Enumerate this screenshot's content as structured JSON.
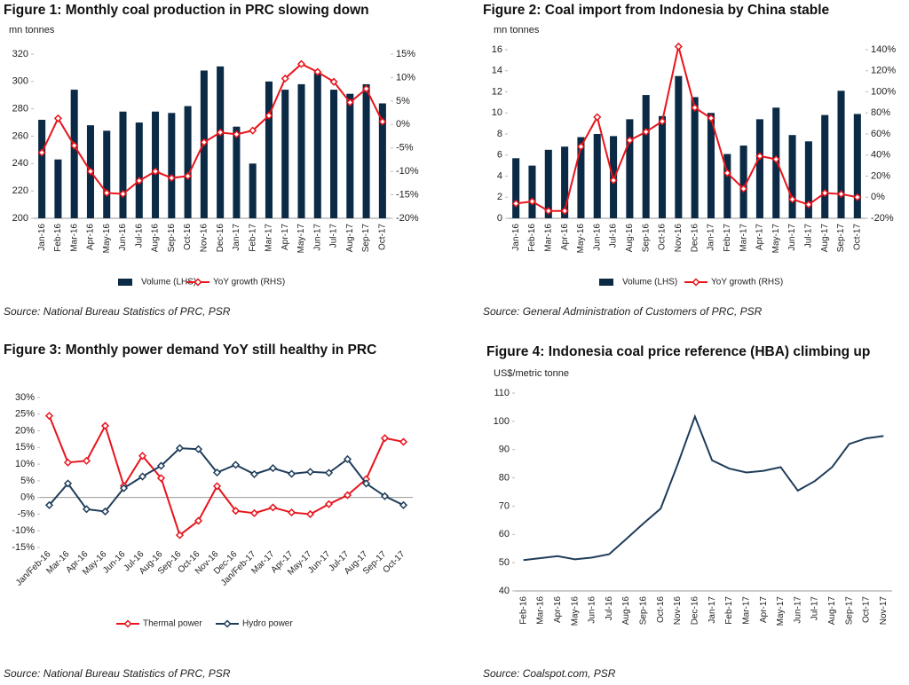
{
  "chart_data": [
    {
      "type": "bar",
      "title": "Figure 1: Monthly coal production in PRC slowing down",
      "y_label": "mn tonnes",
      "source": "Source:  National Bureau Statistics of PRC, PSR",
      "legend": "bottom",
      "markers": true,
      "categories": [
        "Jan-16",
        "Feb-16",
        "Mar-16",
        "Apr-16",
        "May-16",
        "Jun-16",
        "Jul-16",
        "Aug-16",
        "Sep-16",
        "Oct-16",
        "Nov-16",
        "Dec-16",
        "Jan-17",
        "Feb-17",
        "Mar-17",
        "Apr-17",
        "May-17",
        "Jun-17",
        "Jul-17",
        "Aug-17",
        "Sep-17",
        "Oct-17"
      ],
      "series": [
        {
          "name": "Volume (LHS)",
          "type": "bar",
          "color": "#0b2a45",
          "values": [
            272,
            243,
            294,
            268,
            264,
            278,
            270,
            278,
            277,
            282,
            308,
            311,
            267,
            240,
            300,
            294,
            298,
            306,
            294,
            291,
            298,
            284
          ]
        },
        {
          "name": "YoY growth (RHS)",
          "type": "line",
          "axis": "y2",
          "color": "#e8141c",
          "values": [
            -6,
            1.3,
            -4.5,
            -10,
            -14.6,
            -14.8,
            -12,
            -10,
            -11.4,
            -11,
            -3.8,
            -1.7,
            -2.1,
            -1.3,
            1.9,
            9.8,
            12.9,
            11.2,
            9.1,
            4.7,
            7.6,
            0.6
          ]
        }
      ],
      "ylim": [
        200,
        320
      ],
      "yticks": [
        200,
        220,
        240,
        260,
        280,
        300,
        320
      ],
      "y2lim": [
        -20,
        15
      ],
      "y2ticks": [
        {
          "value": -20,
          "label": "-20%"
        },
        {
          "value": -15,
          "label": "-15%"
        },
        {
          "value": -10,
          "label": "-10%"
        },
        {
          "value": -5,
          "label": "-5%"
        },
        {
          "value": 0,
          "label": "0%"
        },
        {
          "value": 5,
          "label": "5%"
        },
        {
          "value": 10,
          "label": "10%"
        },
        {
          "value": 15,
          "label": "15%"
        }
      ]
    },
    {
      "type": "bar",
      "title": "Figure 2: Coal import from Indonesia by China stable",
      "y_label": "mn tonnes",
      "source": "Source: General Administration of Customers of PRC, PSR",
      "legend": "bottom",
      "markers": true,
      "categories": [
        "Jan-16",
        "Feb-16",
        "Mar-16",
        "Apr-16",
        "May-16",
        "Jun-16",
        "Jul-16",
        "Aug-16",
        "Sep-16",
        "Oct-16",
        "Nov-16",
        "Dec-16",
        "Jan-17",
        "Feb-17",
        "Mar-17",
        "Apr-17",
        "May-17",
        "Jun-17",
        "Jul-17",
        "Aug-17",
        "Sep-17",
        "Oct-17"
      ],
      "series": [
        {
          "name": "Volume (LHS)",
          "type": "bar",
          "color": "#0b2a45",
          "values": [
            5.7,
            5.0,
            6.5,
            6.8,
            7.7,
            8.0,
            7.8,
            9.4,
            11.7,
            9.7,
            13.5,
            11.5,
            10.0,
            6.1,
            6.9,
            9.4,
            10.5,
            7.9,
            7.3,
            9.8,
            12.1,
            9.9
          ]
        },
        {
          "name": "YoY growth (RHS)",
          "type": "line",
          "axis": "y2",
          "color": "#e8141c",
          "values": [
            -6,
            -4,
            -13,
            -13,
            48,
            76,
            16,
            54,
            62,
            72,
            143,
            85,
            75,
            23,
            8,
            39,
            36,
            -2,
            -7,
            4,
            3,
            0
          ]
        }
      ],
      "ylim": [
        0,
        16
      ],
      "yticks": [
        0,
        2,
        4,
        6,
        8,
        10,
        12,
        14,
        16
      ],
      "y2lim": [
        -20,
        140
      ],
      "y2ticks": [
        {
          "value": -20,
          "label": "-20%"
        },
        {
          "value": 0,
          "label": "0%"
        },
        {
          "value": 20,
          "label": "20%"
        },
        {
          "value": 40,
          "label": "40%"
        },
        {
          "value": 60,
          "label": "60%"
        },
        {
          "value": 80,
          "label": "80%"
        },
        {
          "value": 100,
          "label": "100%"
        },
        {
          "value": 120,
          "label": "120%"
        },
        {
          "value": 140,
          "label": "140%"
        }
      ]
    },
    {
      "type": "line",
      "title": "Figure 3: Monthly power demand YoY still healthy in PRC",
      "source": "Source:  National Bureau Statistics of PRC, PSR",
      "legend": "bottom",
      "markers": true,
      "categories": [
        "Jan/Feb-16",
        "Mar-16",
        "Apr-16",
        "May-16",
        "Jun-16",
        "Jul-16",
        "Aug-16",
        "Sep-16",
        "Oct-16",
        "Nov-16",
        "Dec-16",
        "Jan/Feb-17",
        "Mar-17",
        "Apr-17",
        "May-17",
        "Jun-17",
        "Jul-17",
        "Aug-17",
        "Sep-17",
        "Oct-17"
      ],
      "series": [
        {
          "name": "Thermal power",
          "type": "line",
          "color": "#e8141c",
          "values": [
            24.5,
            10.5,
            11,
            21.5,
            3.5,
            12.5,
            5.8,
            -11.3,
            -7,
            3.4,
            -4,
            -4.7,
            -3,
            -4.5,
            -5,
            -2,
            0.7,
            5.5,
            17.8,
            16.7
          ]
        },
        {
          "name": "Hydro power",
          "type": "line",
          "color": "#1f3d5a",
          "values": [
            -2.3,
            4.2,
            -3.5,
            -4.2,
            2.8,
            6.3,
            9.5,
            14.8,
            14.5,
            7.5,
            9.8,
            7,
            8.8,
            7.1,
            7.7,
            7.4,
            11.5,
            4.2,
            0.4,
            -2.3
          ]
        }
      ],
      "ylim": [
        -15,
        30
      ],
      "yticks": [
        {
          "value": -15,
          "label": "-15%"
        },
        {
          "value": -10,
          "label": "-10%"
        },
        {
          "value": -5,
          "label": "-5%"
        },
        {
          "value": 0,
          "label": "0%"
        },
        {
          "value": 5,
          "label": "5%"
        },
        {
          "value": 10,
          "label": "10%"
        },
        {
          "value": 15,
          "label": "15%"
        },
        {
          "value": 20,
          "label": "20%"
        },
        {
          "value": 25,
          "label": "25%"
        },
        {
          "value": 30,
          "label": "30%"
        }
      ]
    },
    {
      "type": "line",
      "title": "Figure 4: Indonesia coal price reference (HBA) climbing up",
      "y_label": "US$/metric tonne",
      "source": "Source: Coalspot.com, PSR",
      "markers": false,
      "categories": [
        "Feb-16",
        "Mar-16",
        "Apr-16",
        "May-16",
        "Jun-16",
        "Jul-16",
        "Aug-16",
        "Sep-16",
        "Oct-16",
        "Nov-16",
        "Dec-16",
        "Jan-17",
        "Feb-17",
        "Mar-17",
        "Apr-17",
        "May-17",
        "Jun-17",
        "Jul-17",
        "Aug-17",
        "Sep-17",
        "Oct-17",
        "Nov-17"
      ],
      "series": [
        {
          "type": "line",
          "color": "#1f3d5a",
          "values": [
            50.9,
            51.6,
            52.3,
            51.2,
            51.8,
            53.0,
            58.4,
            63.9,
            69.1,
            84.9,
            101.7,
            86.2,
            83.3,
            81.9,
            82.5,
            83.8,
            75.5,
            78.9,
            83.8,
            92.0,
            94.0,
            94.8
          ]
        }
      ],
      "ylim": [
        40,
        110
      ],
      "yticks": [
        40,
        50,
        60,
        70,
        80,
        90,
        100,
        110
      ]
    }
  ]
}
